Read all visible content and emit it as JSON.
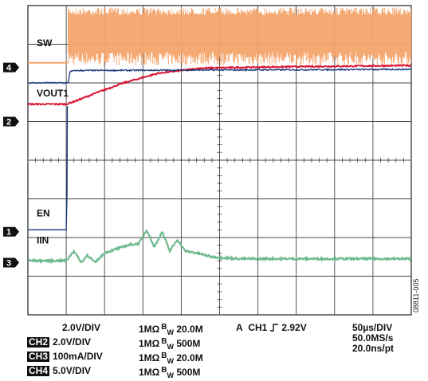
{
  "chart_data": {
    "type": "line",
    "title": "",
    "grid": true,
    "grid_divisions": {
      "x": 10,
      "y": 8
    },
    "xlim": [
      0,
      10
    ],
    "ylim": [
      -4,
      4
    ],
    "channels": [
      {
        "name": "SW",
        "marker": "4",
        "color": "#f4a46c",
        "ground_div": 1.4,
        "baseline_div": 1.45,
        "active_low_div": 0.8,
        "active_high_div": 3.8,
        "switch_start_div": 1.05,
        "style": "switching"
      },
      {
        "name": "VOUT1",
        "marker": "2",
        "color": "#d9112f",
        "ground_div": 0.45,
        "x": [
          0,
          1.0,
          1.3,
          1.8,
          2.5,
          3.4,
          4.5,
          5.5,
          7,
          10
        ],
        "y": [
          0.45,
          0.45,
          0.55,
          0.75,
          1.0,
          1.25,
          1.38,
          1.4,
          1.42,
          1.45
        ]
      },
      {
        "name": "",
        "marker": "",
        "color": "#16357a",
        "ground_div": 0,
        "x": [
          0,
          1.05,
          1.1,
          1.3,
          10
        ],
        "y": [
          1.0,
          1.0,
          1.3,
          1.32,
          1.35
        ]
      },
      {
        "name": "EN",
        "marker": "1",
        "color": "#16357a",
        "ground_div": 0.6,
        "x": [
          0,
          1.0,
          1.02,
          1.05,
          10
        ],
        "y": [
          0.05,
          0.05,
          1.0,
          4.2,
          4.2
        ]
      },
      {
        "name": "IIN",
        "marker": "3",
        "color": "#6fba8e",
        "ground_div": 0.5,
        "x": [
          0,
          1.0,
          1.2,
          1.4,
          1.55,
          1.75,
          2.0,
          2.3,
          2.6,
          2.9,
          3.1,
          3.3,
          3.5,
          3.7,
          3.9,
          4.1,
          4.4,
          4.8,
          5.5,
          6.5,
          8,
          10
        ],
        "y": [
          0.05,
          0.05,
          0.3,
          0.0,
          0.2,
          0.0,
          0.25,
          0.35,
          0.45,
          0.5,
          0.85,
          0.4,
          0.8,
          0.3,
          0.6,
          0.3,
          0.25,
          0.15,
          0.1,
          0.1,
          0.1,
          0.1
        ]
      }
    ]
  },
  "settings": {
    "ch1": {
      "tag": "",
      "volts": "2.0V/DIV",
      "imp": "1MΩ",
      "bw": "20.0M"
    },
    "ch2": {
      "tag": "CH2",
      "volts": "2.0V/DIV",
      "imp": "1MΩ",
      "bw": "500M"
    },
    "ch3": {
      "tag": "CH3",
      "volts": "100mA/DIV",
      "imp": "1MΩ",
      "bw": "20.0M"
    },
    "ch4": {
      "tag": "CH4",
      "volts": "5.0V/DIV",
      "imp": "1MΩ",
      "bw": "500M"
    },
    "bw_label": "B",
    "bw_sub": "W",
    "trigger": {
      "mode": "A",
      "source": "CH1",
      "level": "2.92V"
    },
    "timebase": {
      "time_div": "50µs/DIV",
      "sample_rate": "50.0MS/s",
      "resolution": "20.0ns/pt"
    }
  },
  "figure_id": "08811-005"
}
